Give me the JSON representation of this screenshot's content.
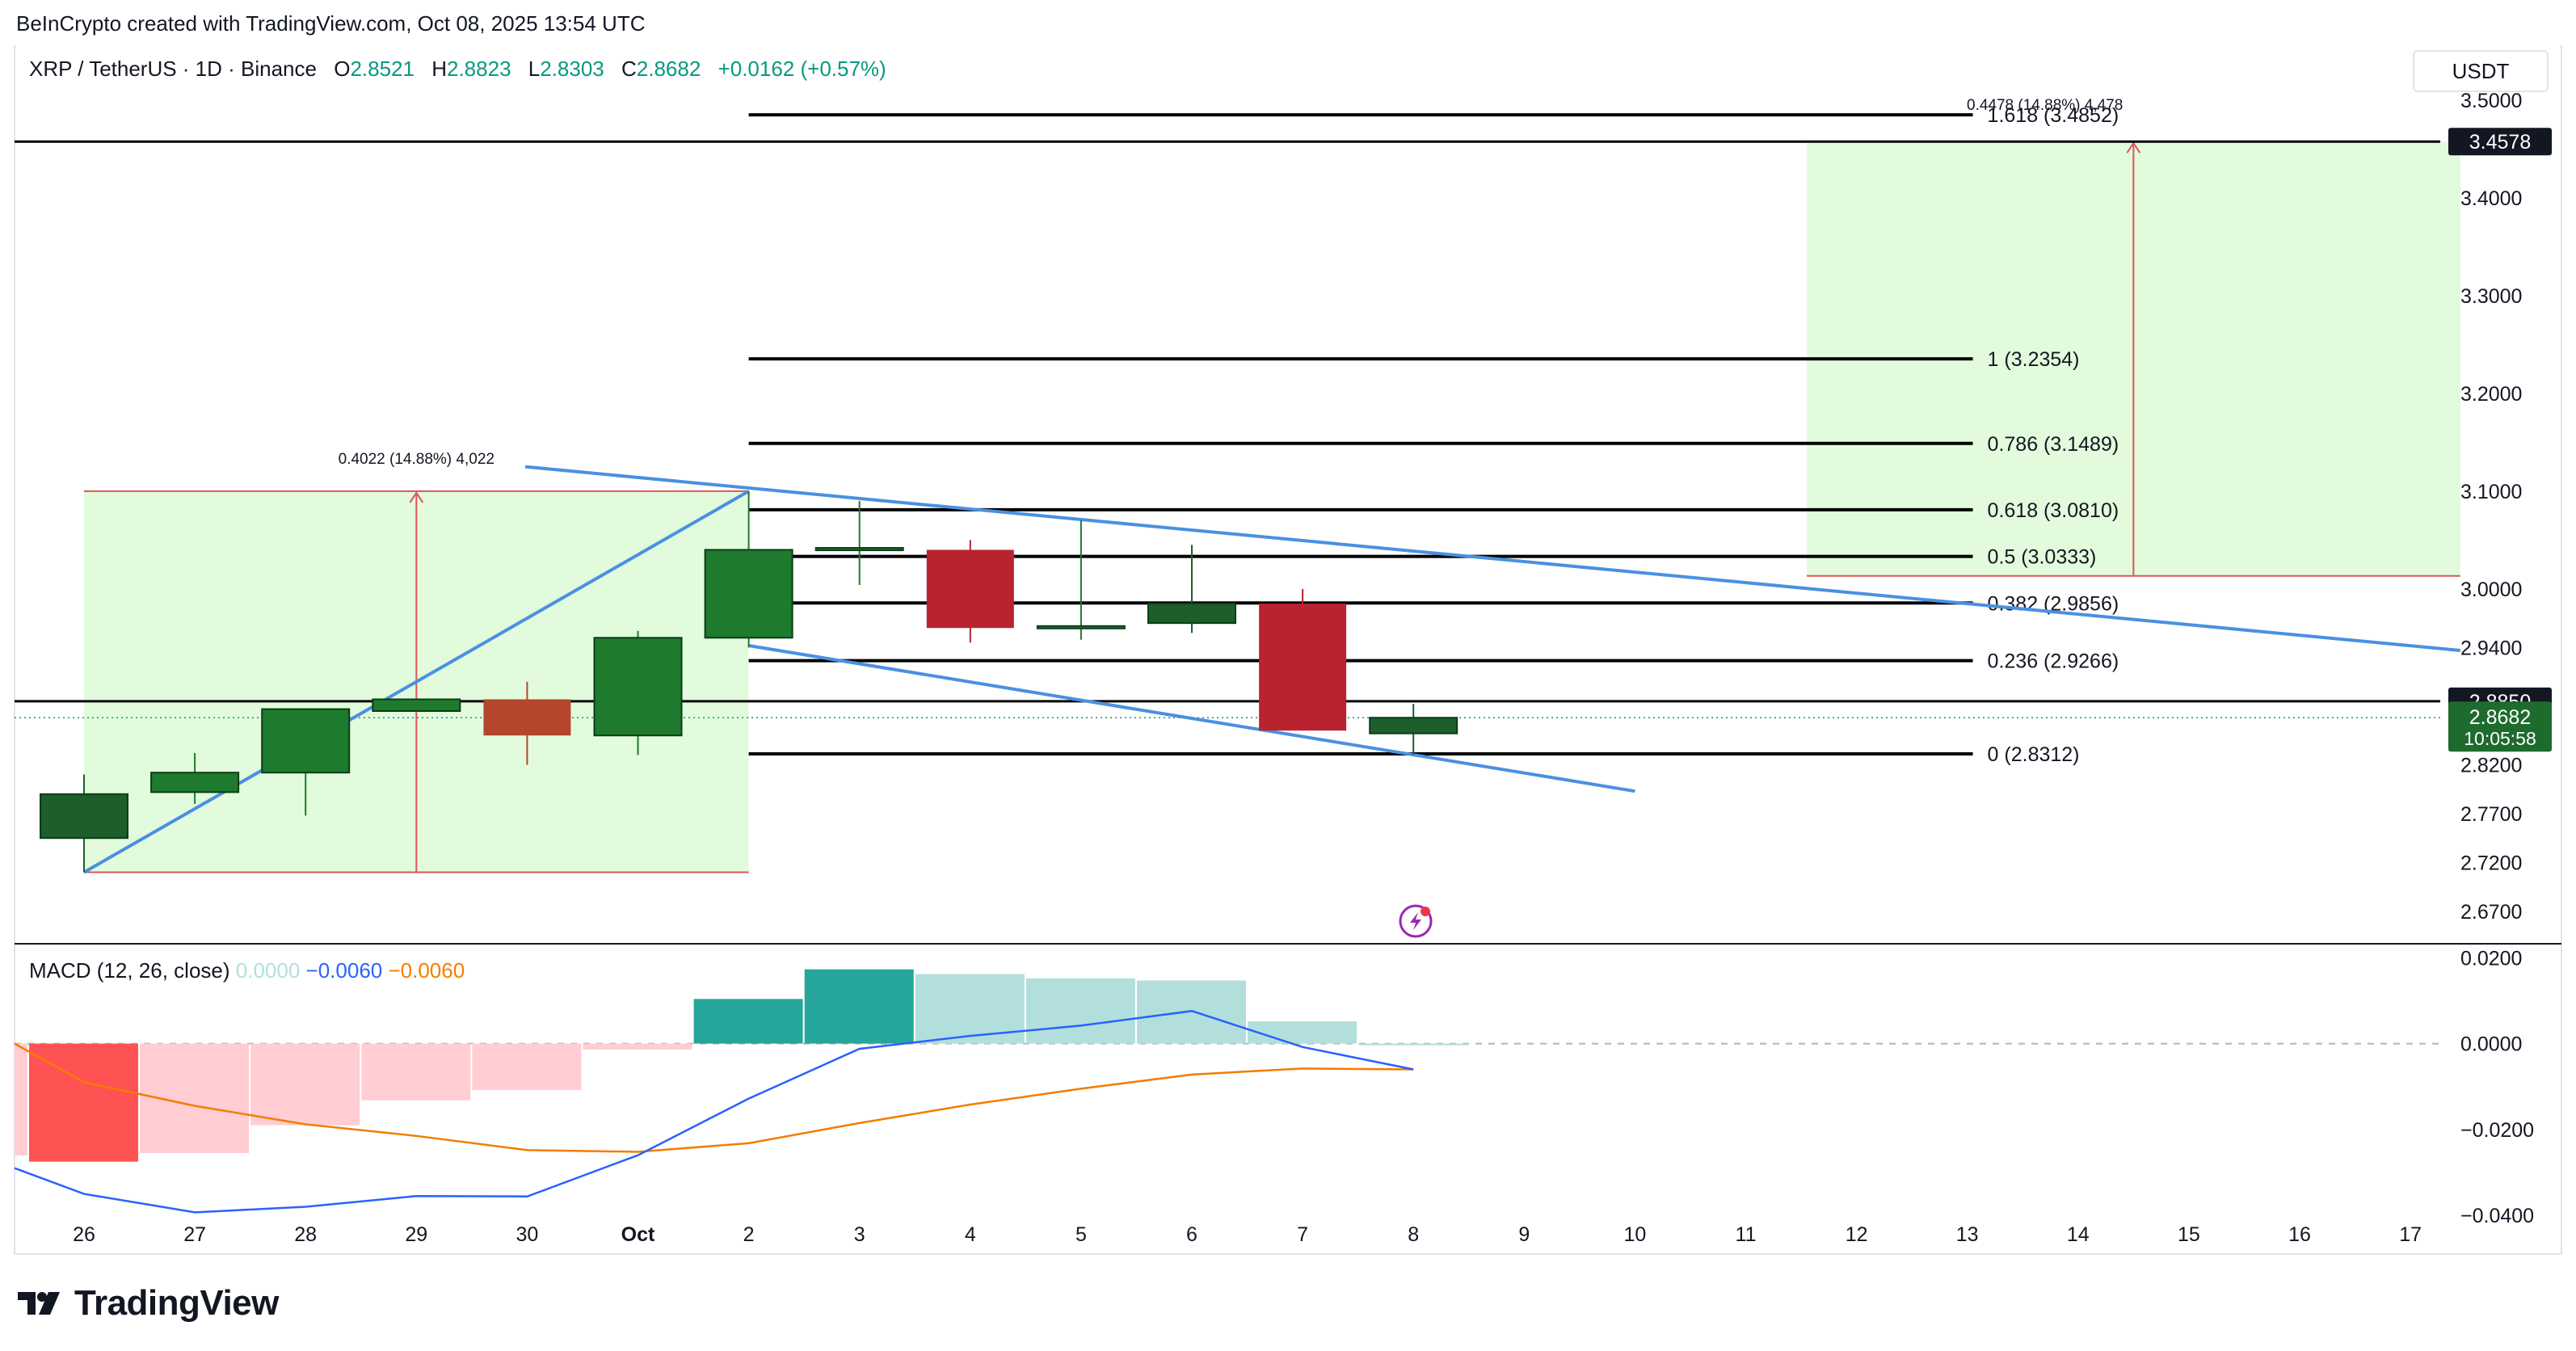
{
  "header": {
    "created_by": "BeInCrypto created with TradingView.com, Oct 08, 2025 13:54 UTC",
    "symbol": "XRP / TetherUS · 1D · Binance",
    "o_label": "O",
    "o_value": "2.8521",
    "h_label": "H",
    "h_value": "2.8823",
    "l_label": "L",
    "l_value": "2.8303",
    "c_label": "C",
    "c_value": "2.8682",
    "change": "+0.0162 (+0.57%)"
  },
  "currency": "USDT",
  "brand": {
    "name": "TradingView"
  },
  "colors": {
    "up": "#1e7a2c",
    "up_dark": "#1d5e2a",
    "down": "#b8232f",
    "down_orange": "#b4462e",
    "trendline": "#4a90e2",
    "fib": "#000000",
    "box_fill": "#e2fbdc",
    "box_border": "#e0535a",
    "macd_line": "#2962ff",
    "signal_line": "#f57c00",
    "hist_neg_strong": "#ff5252",
    "hist_neg_weak": "#ffcdd2",
    "hist_pos_strong": "#26a69a",
    "hist_pos_weak": "#b2dfdb"
  },
  "chart_data": [
    {
      "type": "candlestick",
      "title": "XRP / TetherUS · 1D · Binance",
      "x_axis_labels": [
        "26",
        "27",
        "28",
        "29",
        "30",
        "Oct",
        "2",
        "3",
        "4",
        "5",
        "6",
        "7",
        "8",
        "9",
        "10",
        "11",
        "12",
        "13",
        "14",
        "15",
        "16",
        "17"
      ],
      "y_axis_ticks": [
        "3.5000",
        "3.4000",
        "3.3000",
        "3.2000",
        "3.1000",
        "3.0000",
        "2.9400",
        "2.8200",
        "2.7700",
        "2.7200",
        "2.6700"
      ],
      "ylim": [
        2.66,
        3.52
      ],
      "candles": [
        {
          "x": "26",
          "open": 2.745,
          "high": 2.81,
          "low": 2.71,
          "close": 2.79
        },
        {
          "x": "27",
          "open": 2.792,
          "high": 2.832,
          "low": 2.78,
          "close": 2.812
        },
        {
          "x": "28",
          "open": 2.812,
          "high": 2.877,
          "low": 2.768,
          "close": 2.877
        },
        {
          "x": "29",
          "open": 2.875,
          "high": 2.887,
          "low": 2.875,
          "close": 2.887
        },
        {
          "x": "30",
          "open": 2.887,
          "high": 2.905,
          "low": 2.82,
          "close": 2.85
        },
        {
          "x": "Oct",
          "open": 2.85,
          "high": 2.957,
          "low": 2.83,
          "close": 2.95
        },
        {
          "x": "2",
          "open": 2.95,
          "high": 3.1,
          "low": 2.94,
          "close": 3.04
        },
        {
          "x": "3",
          "open": 3.04,
          "high": 3.09,
          "low": 3.004,
          "close": 3.042
        },
        {
          "x": "4",
          "open": 3.04,
          "high": 3.05,
          "low": 2.945,
          "close": 2.96
        },
        {
          "x": "5",
          "open": 2.962,
          "high": 3.07,
          "low": 2.948,
          "close": 2.962
        },
        {
          "x": "6",
          "open": 2.965,
          "high": 3.045,
          "low": 2.955,
          "close": 2.985
        },
        {
          "x": "7",
          "open": 2.985,
          "high": 3.0,
          "low": 2.855,
          "close": 2.855
        },
        {
          "x": "8",
          "open": 2.8521,
          "high": 2.8823,
          "low": 2.8303,
          "close": 2.8682
        }
      ],
      "fib_levels": [
        {
          "label": "0 (2.8312)",
          "value": 2.8312
        },
        {
          "label": "0.236 (2.9266)",
          "value": 2.9266
        },
        {
          "label": "0.382 (2.9856)",
          "value": 2.9856
        },
        {
          "label": "0.5 (3.0333)",
          "value": 3.0333
        },
        {
          "label": "0.618 (3.0810)",
          "value": 3.081
        },
        {
          "label": "0.786 (3.1489)",
          "value": 3.1489
        },
        {
          "label": "1 (3.2354)",
          "value": 3.2354
        },
        {
          "label": "1.618 (3.4852)",
          "value": 3.4852
        }
      ],
      "price_lines": [
        {
          "label": "3.4578",
          "value": 3.4578
        },
        {
          "label": "2.8850",
          "value": 2.885
        }
      ],
      "current_price": {
        "label": "2.8682",
        "value": 2.8682,
        "countdown": "10:05:58"
      },
      "measure_annotations": [
        {
          "label": "0.4022 (14.88%) 4,022"
        },
        {
          "label": "0.4478 (14.88%) 4,478"
        }
      ]
    },
    {
      "type": "line",
      "title": "MACD (12, 26, close)",
      "legend_values": {
        "histogram": "0.0000",
        "macd": "−0.0060",
        "signal": "−0.0060"
      },
      "y_axis_ticks": [
        "0.0200",
        "0.0000",
        "−0.0200",
        "−0.0400"
      ],
      "ylim": [
        -0.046,
        0.021
      ],
      "x": [
        "25",
        "26",
        "27",
        "28",
        "29",
        "30",
        "Oct",
        "2",
        "3",
        "4",
        "5",
        "6",
        "7",
        "8"
      ],
      "series": [
        {
          "name": "MACD",
          "values": [
            -0.029,
            -0.035,
            -0.0393,
            -0.038,
            -0.0355,
            -0.0356,
            -0.026,
            -0.0128,
            -0.0012,
            0.0018,
            0.0042,
            0.0076,
            -0.0008,
            -0.006
          ]
        },
        {
          "name": "Signal",
          "values": [
            0.0,
            -0.009,
            -0.0145,
            -0.0188,
            -0.0215,
            -0.0248,
            -0.0252,
            -0.0232,
            -0.0185,
            -0.0142,
            -0.0105,
            -0.0072,
            -0.0058,
            -0.006
          ]
        },
        {
          "name": "Histogram",
          "values": [
            -0.026,
            -0.0275,
            -0.0255,
            -0.019,
            -0.0132,
            -0.0108,
            -0.0014,
            0.0104,
            0.0173,
            0.0162,
            0.0152,
            0.0147,
            0.0052,
            0.0
          ]
        }
      ]
    }
  ]
}
